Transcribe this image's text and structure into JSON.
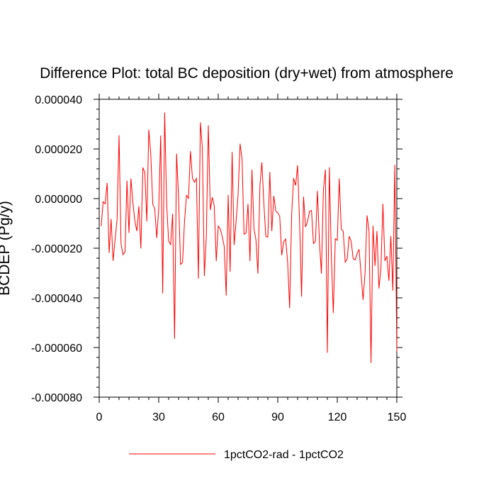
{
  "chart_data": {
    "type": "line",
    "title": "Difference Plot: total BC deposition (dry+wet) from atmosphere",
    "xlabel": "",
    "ylabel": "BCDEP  (Pg/y)",
    "xlim": [
      0,
      150
    ],
    "ylim": [
      -8e-05,
      4e-05
    ],
    "x_ticks": [
      0,
      30,
      60,
      90,
      120,
      150
    ],
    "x_tick_labels": [
      "0",
      "30",
      "60",
      "90",
      "120",
      "150"
    ],
    "y_ticks": [
      -8e-05,
      -6e-05,
      -4e-05,
      -2e-05,
      0.0,
      2e-05,
      4e-05
    ],
    "y_tick_labels": [
      "-0.000080",
      "-0.000060",
      "-0.000040",
      "-0.000020",
      "0.000000",
      "0.000020",
      "0.000040"
    ],
    "x_minor_step": 5,
    "y_minor_step": 4e-06,
    "grid": false,
    "legend_position": "bottom-center",
    "line_color": "#ff0000",
    "series": [
      {
        "name": "1pctCO2-rad - 1pctCO2",
        "color": "#ff0000",
        "values": [
          -1.11e-05,
          -1.3e-06,
          -2.1e-06,
          6.3e-06,
          -2.19e-05,
          -8.2e-06,
          -2.51e-05,
          -1.64e-05,
          -8.5e-06,
          2.55e-05,
          -1.82e-05,
          -2.26e-05,
          -2.15e-05,
          7.2e-06,
          -1.38e-05,
          8.1e-06,
          -1.8e-06,
          -9.2e-06,
          -1.31e-05,
          -3.1e-06,
          -2.01e-05,
          1.25e-05,
          1.05e-05,
          -9.2e-06,
          2.78e-05,
          1.78e-05,
          -2.3e-06,
          -4.1e-06,
          -1.59e-05,
          -4.1e-06,
          2.54e-05,
          -3.82e-05,
          3.47e-05,
          -2.4e-06,
          -1.71e-05,
          -1.85e-05,
          -6.2e-06,
          -5.65e-05,
          1.81e-05,
          5e-07,
          -2.65e-05,
          -2.58e-05,
          -9.2e-06,
          1.3e-06,
          1e-07,
          1.91e-05,
          8.2e-06,
          6.6e-06,
          8.1e-06,
          -3.22e-05,
          3.07e-05,
          2.04e-05,
          -3.12e-05,
          -1.52e-05,
          2.95e-05,
          -4.6e-06,
          5e-07,
          -2.9e-06,
          -2.52e-05,
          -1.11e-05,
          -1.22e-05,
          -1.52e-05,
          -1.92e-05,
          -3.91e-05,
          1.5e-06,
          -2.95e-05,
          1.88e-05,
          -1.87e-05,
          -9.1e-06,
          1.5e-06,
          2.21e-05,
          1.61e-05,
          -1.43e-05,
          -1.39e-05,
          -2.2e-06,
          -2.52e-05,
          1.17e-05,
          -1.22e-05,
          -1.65e-05,
          -3.02e-05,
          5.1e-06,
          1.46e-05,
          -2.1e-06,
          -1.53e-05,
          -1.55e-05,
          1.07e-05,
          -1.31e-05,
          1.1e-06,
          -5.1e-06,
          -5.7e-06,
          -7.2e-06,
          -2.28e-05,
          -1.74e-05,
          -1.63e-05,
          -2.59e-05,
          -4.41e-05,
          -6.4e-06,
          8.2e-06,
          5.3e-06,
          1.34e-05,
          -9.6e-06,
          -3.95e-05,
          8e-07,
          -1.15e-05,
          -9.2e-06,
          -5.1e-06,
          -4.8e-06,
          -1.81e-05,
          -1.72e-05,
          3.1e-06,
          -1.74e-05,
          -3.02e-05,
          3.4e-06,
          1.17e-05,
          -6.21e-05,
          1.26e-05,
          -2.31e-05,
          -4.61e-05,
          -1.62e-05,
          -1.68e-05,
          8.1e-06,
          -1.22e-05,
          -1.32e-05,
          -2.56e-05,
          -2.43e-05,
          -1.52e-05,
          -1.72e-05,
          -2.42e-05,
          -2.47e-05,
          -2.22e-05,
          -2.04e-05,
          -3.05e-05,
          -4.08e-05,
          -2.98e-05,
          -6.8e-06,
          -1.31e-05,
          -6.62e-05,
          -1.09e-05,
          -2.71e-05,
          -1.31e-05,
          -3.62e-05,
          -2.81e-05,
          -2.1e-06,
          -2.51e-05,
          -2.32e-05,
          -3.31e-05,
          -1.51e-05,
          -3.71e-05,
          1.36e-05,
          -6.16e-05
        ]
      }
    ]
  }
}
